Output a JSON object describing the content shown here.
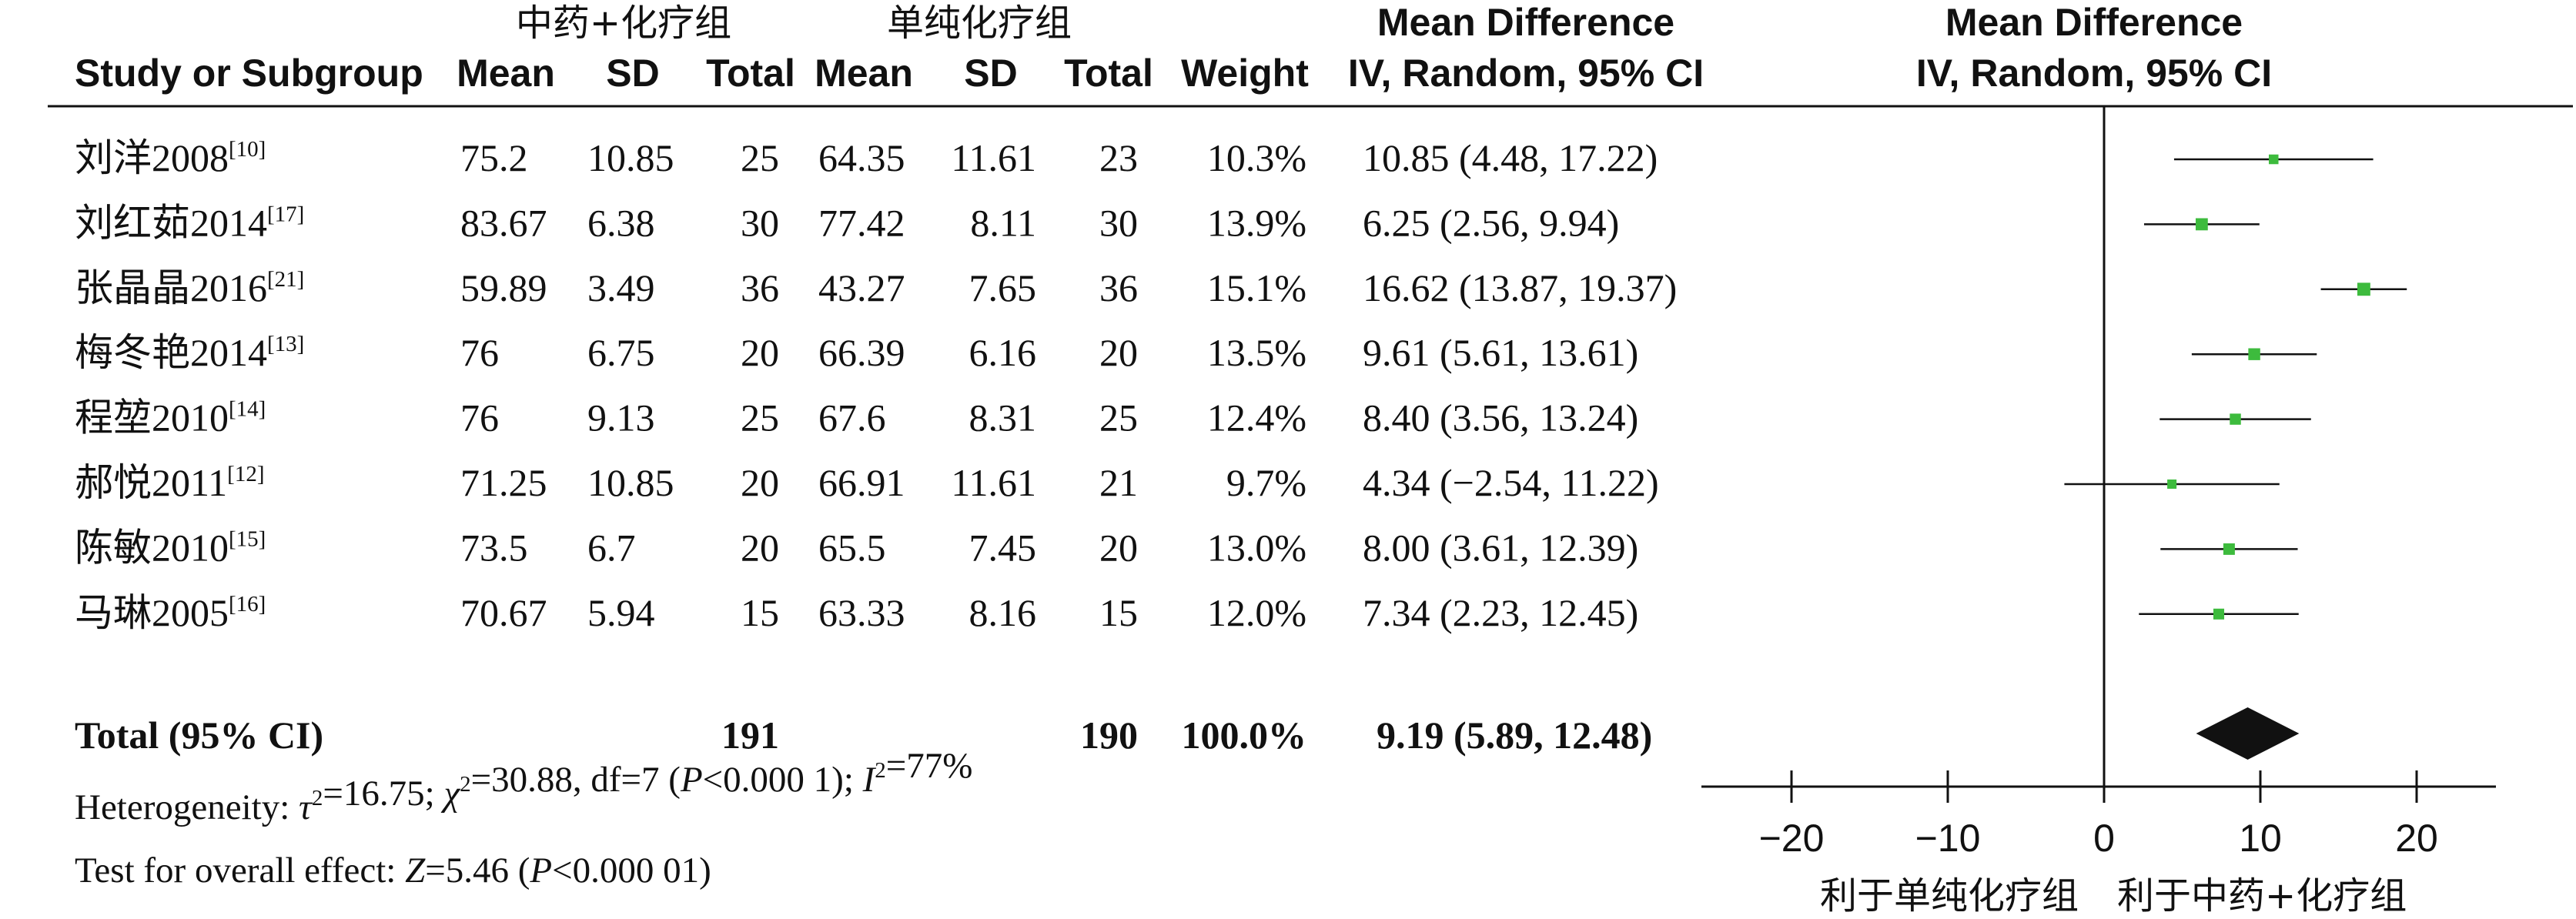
{
  "group_headers": {
    "experimental": "中药+化疗组",
    "control": "单纯化疗组"
  },
  "columns": {
    "study": "Study or Subgroup",
    "mean": "Mean",
    "sd": "SD",
    "total": "Total",
    "weight": "Weight",
    "md_title": "Mean Difference",
    "md_method": "IV, Random, 95% CI"
  },
  "plot_header": {
    "title": "Mean Difference",
    "method": "IV, Random, 95% CI"
  },
  "total_row": {
    "label": "Total (95% CI)",
    "exp_total": "191",
    "ctl_total": "190",
    "weight": "100.0%",
    "ci": "9.19 (5.89, 12.48)"
  },
  "footer": {
    "heterogeneity": "Heterogeneity: τ²=16.75; χ²=30.88, df=7 (P<0.000 1); I²=77%",
    "overall_effect": "Test for overall effect: Z=5.46 (P<0.000 01)"
  },
  "favours": {
    "left": "利于单纯化疗组",
    "right": "利于中药+化疗组"
  },
  "colors": {
    "marker": "#3dbb3d",
    "diamond": "#111111",
    "line": "#111111"
  },
  "chart_data": {
    "type": "forest",
    "x_ticks": [
      "−20",
      "−10",
      "0",
      "10",
      "20"
    ],
    "x_tick_values": [
      -20,
      -10,
      0,
      10,
      20
    ],
    "xlim": [
      -25,
      25
    ],
    "studies": [
      {
        "name": "刘洋2008",
        "ref": "[10]",
        "exp_mean": "75.2",
        "exp_sd": "10.85",
        "exp_total": "25",
        "ctl_mean": "64.35",
        "ctl_sd": "11.61",
        "ctl_total": "23",
        "weight": "10.3%",
        "ci_text": "10.85 (4.48, 17.22)",
        "md": 10.85,
        "lower": 4.48,
        "upper": 17.22
      },
      {
        "name": "刘红茹2014",
        "ref": "[17]",
        "exp_mean": "83.67",
        "exp_sd": "6.38",
        "exp_total": "30",
        "ctl_mean": "77.42",
        "ctl_sd": "8.11",
        "ctl_total": "30",
        "weight": "13.9%",
        "ci_text": "6.25 (2.56, 9.94)",
        "md": 6.25,
        "lower": 2.56,
        "upper": 9.94
      },
      {
        "name": "张晶晶2016",
        "ref": "[21]",
        "exp_mean": "59.89",
        "exp_sd": "3.49",
        "exp_total": "36",
        "ctl_mean": "43.27",
        "ctl_sd": "7.65",
        "ctl_total": "36",
        "weight": "15.1%",
        "ci_text": "16.62 (13.87, 19.37)",
        "md": 16.62,
        "lower": 13.87,
        "upper": 19.37
      },
      {
        "name": "梅冬艳2014",
        "ref": "[13]",
        "exp_mean": "76",
        "exp_sd": "6.75",
        "exp_total": "20",
        "ctl_mean": "66.39",
        "ctl_sd": "6.16",
        "ctl_total": "20",
        "weight": "13.5%",
        "ci_text": "9.61 (5.61, 13.61)",
        "md": 9.61,
        "lower": 5.61,
        "upper": 13.61
      },
      {
        "name": "程堃2010",
        "ref": "[14]",
        "exp_mean": "76",
        "exp_sd": "9.13",
        "exp_total": "25",
        "ctl_mean": "67.6",
        "ctl_sd": "8.31",
        "ctl_total": "25",
        "weight": "12.4%",
        "ci_text": "8.40 (3.56, 13.24)",
        "md": 8.4,
        "lower": 3.56,
        "upper": 13.24
      },
      {
        "name": "郝悦2011",
        "ref": "[12]",
        "exp_mean": "71.25",
        "exp_sd": "10.85",
        "exp_total": "20",
        "ctl_mean": "66.91",
        "ctl_sd": "11.61",
        "ctl_total": "21",
        "weight": "9.7%",
        "ci_text": "4.34 (−2.54, 11.22)",
        "md": 4.34,
        "lower": -2.54,
        "upper": 11.22
      },
      {
        "name": "陈敏2010",
        "ref": "[15]",
        "exp_mean": "73.5",
        "exp_sd": "6.7",
        "exp_total": "20",
        "ctl_mean": "65.5",
        "ctl_sd": "7.45",
        "ctl_total": "20",
        "weight": "13.0%",
        "ci_text": "8.00 (3.61, 12.39)",
        "md": 8.0,
        "lower": 3.61,
        "upper": 12.39
      },
      {
        "name": "马琳2005",
        "ref": "[16]",
        "exp_mean": "70.67",
        "exp_sd": "5.94",
        "exp_total": "15",
        "ctl_mean": "63.33",
        "ctl_sd": "8.16",
        "ctl_total": "15",
        "weight": "12.0%",
        "ci_text": "7.34 (2.23, 12.45)",
        "md": 7.34,
        "lower": 2.23,
        "upper": 12.45
      }
    ],
    "pooled": {
      "md": 9.19,
      "lower": 5.89,
      "upper": 12.48
    }
  }
}
